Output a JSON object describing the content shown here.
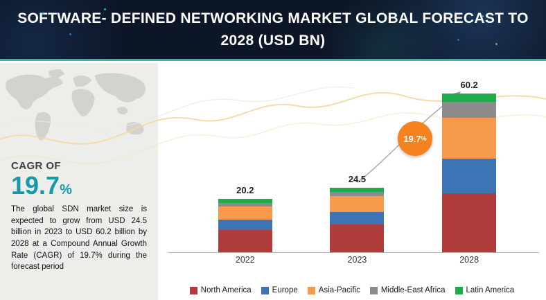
{
  "header": {
    "title_line1": "SOFTWARE- DEFINED NETWORKING  MARKET GLOBAL FORECAST TO",
    "title_line2": "2028 (USD BN)"
  },
  "sidebar": {
    "cagr_label": "CAGR OF",
    "cagr_value": "19.7",
    "cagr_percent": "%",
    "description": "The global SDN market size is expected to grow from USD 24.5 billion in 2023 to USD 60.2 billion by 2028 at a Compound Annual Growth Rate (CAGR) of 19.7% during the forecast period"
  },
  "chart_data": {
    "type": "bar",
    "stacked": true,
    "title": "Software-Defined Networking Market Global Forecast to 2028 (USD BN)",
    "categories": [
      "2022",
      "2023",
      "2028"
    ],
    "totals": [
      20.2,
      24.5,
      60.2
    ],
    "series": [
      {
        "name": "North America",
        "color": "#b03c3c",
        "values": [
          8.5,
          10.5,
          22.5
        ]
      },
      {
        "name": "Europe",
        "color": "#3d74b5",
        "values": [
          4.0,
          4.8,
          13.0
        ]
      },
      {
        "name": "Asia-Pacific",
        "color": "#f79a4d",
        "values": [
          5.0,
          6.0,
          15.5
        ]
      },
      {
        "name": "Middle-East Africa",
        "color": "#8c8c8c",
        "values": [
          1.2,
          1.5,
          6.0
        ]
      },
      {
        "name": "Latin America",
        "color": "#1eac4b",
        "values": [
          1.5,
          1.7,
          3.2
        ]
      }
    ],
    "growth_badge_value": "19.7",
    "growth_badge_percent": "%",
    "ylim": [
      0,
      65
    ],
    "legend_position": "bottom",
    "grid": false
  }
}
